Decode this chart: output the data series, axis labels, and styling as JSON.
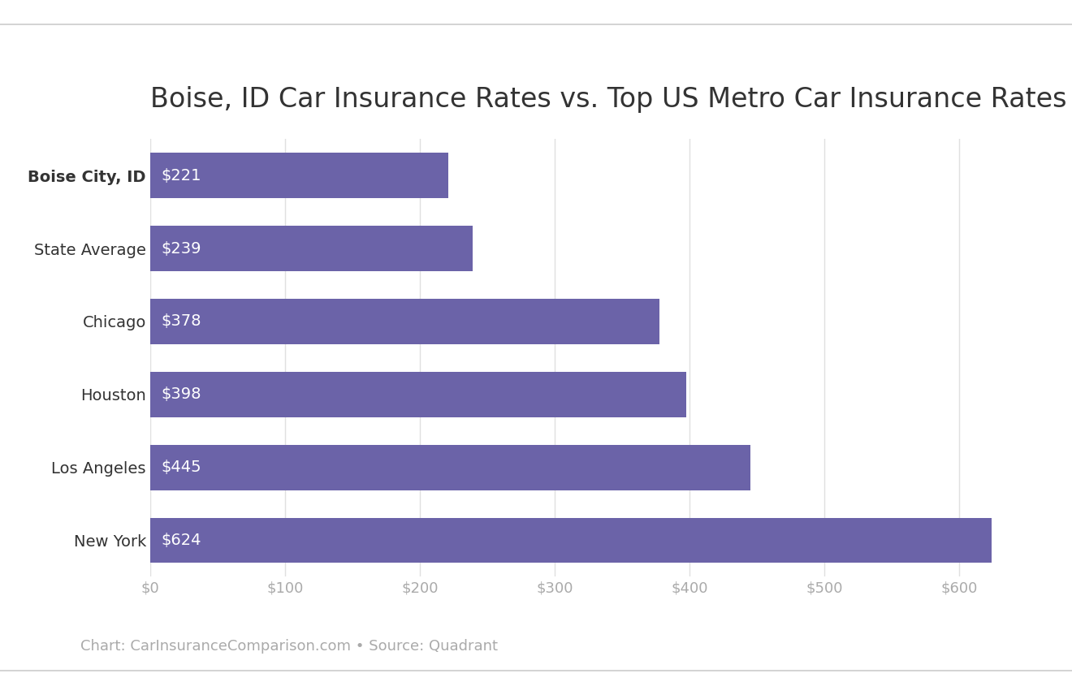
{
  "title": "Boise, ID Car Insurance Rates vs. Top US Metro Car Insurance Rates",
  "categories": [
    "Boise City, ID",
    "State Average",
    "Chicago",
    "Houston",
    "Los Angeles",
    "New York"
  ],
  "values": [
    221,
    239,
    378,
    398,
    445,
    624
  ],
  "bar_color": "#6B63A8",
  "label_color": "#ffffff",
  "title_color": "#333333",
  "title_fontsize": 24,
  "label_fontsize": 14,
  "tick_fontsize": 13,
  "ytick_fontsize": 14,
  "bold_category_index": 0,
  "xlim": [
    0,
    660
  ],
  "xticks": [
    0,
    100,
    200,
    300,
    400,
    500,
    600
  ],
  "xtick_labels": [
    "$0",
    "$100",
    "$200",
    "$300",
    "$400",
    "$500",
    "$600"
  ],
  "caption": "Chart: CarInsuranceComparison.com • Source: Quadrant",
  "caption_color": "#aaaaaa",
  "caption_fontsize": 13,
  "background_color": "#ffffff",
  "bar_height": 0.62,
  "grid_color": "#e0e0e0",
  "border_color": "#cccccc"
}
